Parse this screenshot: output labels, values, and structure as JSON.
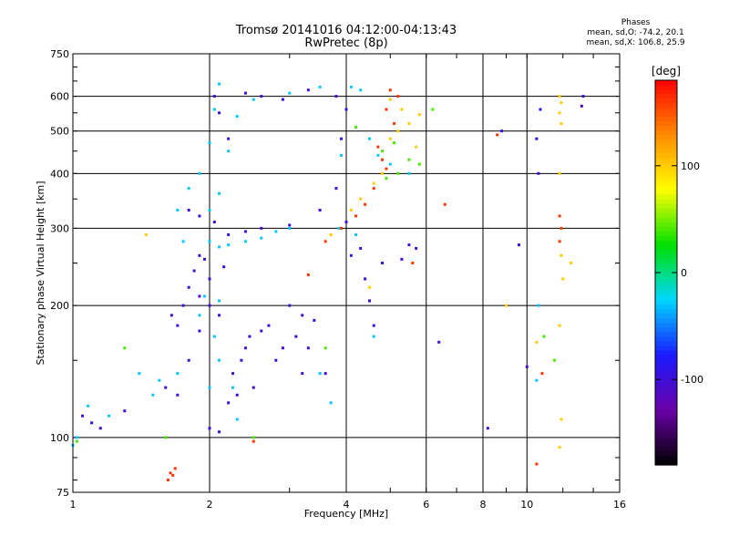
{
  "header": {
    "title_line1": "Tromsø 20141016 04:12:00-04:13:43",
    "title_line2": "RwPretec (8p)"
  },
  "stats": {
    "heading": "Phases",
    "line1": "mean, sd,O: -74.2, 20.1",
    "line2": "mean, sd,X: 106.8, 25.9"
  },
  "chart_data": {
    "type": "scatter",
    "xlabel": "Frequency [MHz]",
    "ylabel": "Stationary phase Virtual Height [km]",
    "x_scale": "log",
    "y_scale": "log",
    "xlim": [
      1,
      16
    ],
    "ylim": [
      75,
      750
    ],
    "x_ticks": [
      1,
      2,
      4,
      6,
      8,
      10,
      16
    ],
    "y_ticks": [
      75,
      100,
      200,
      300,
      400,
      500,
      600,
      750
    ],
    "grid": true,
    "colorbar": {
      "label": "[deg]",
      "range": [
        -180,
        180
      ],
      "ticks": [
        100,
        0,
        -100
      ],
      "colors": [
        "#000000",
        "#6a00a8",
        "#1a1aff",
        "#00d8ff",
        "#00e000",
        "#ffff00",
        "#ff8c00",
        "#ff0000"
      ]
    },
    "series": [
      {
        "phase": -100,
        "points": [
          [
            1.05,
            112
          ],
          [
            1.1,
            108
          ],
          [
            1.15,
            105
          ],
          [
            1.3,
            115
          ],
          [
            1.6,
            130
          ],
          [
            1.7,
            125
          ],
          [
            1.8,
            150
          ],
          [
            1.9,
            175
          ],
          [
            2.0,
            105
          ],
          [
            2.1,
            103
          ],
          [
            2.05,
            600
          ],
          [
            2.1,
            550
          ],
          [
            2.2,
            480
          ],
          [
            2.4,
            610
          ],
          [
            2.6,
            600
          ],
          [
            2.9,
            590
          ],
          [
            3.3,
            620
          ],
          [
            3.8,
            600
          ],
          [
            4.0,
            560
          ],
          [
            3.9,
            480
          ],
          [
            3.8,
            370
          ],
          [
            3.5,
            330
          ],
          [
            3.0,
            305
          ],
          [
            2.6,
            300
          ],
          [
            2.4,
            295
          ],
          [
            2.2,
            290
          ],
          [
            2.05,
            310
          ],
          [
            1.9,
            320
          ],
          [
            1.8,
            330
          ],
          [
            3.2,
            190
          ],
          [
            3.4,
            185
          ],
          [
            3.6,
            140
          ],
          [
            2.8,
            150
          ],
          [
            2.5,
            130
          ],
          [
            2.3,
            125
          ],
          [
            2.2,
            120
          ],
          [
            2.4,
            160
          ],
          [
            2.6,
            175
          ],
          [
            4.0,
            310
          ],
          [
            4.1,
            260
          ],
          [
            4.5,
            205
          ],
          [
            4.6,
            180
          ],
          [
            4.8,
            250
          ],
          [
            5.3,
            255
          ],
          [
            5.5,
            275
          ],
          [
            5.7,
            270
          ],
          [
            4.3,
            270
          ],
          [
            4.4,
            230
          ],
          [
            6.4,
            165
          ],
          [
            8.2,
            105
          ],
          [
            8.8,
            500
          ],
          [
            9.6,
            275
          ],
          [
            10.5,
            480
          ],
          [
            10.6,
            400
          ],
          [
            10.7,
            560
          ],
          [
            13.2,
            570
          ],
          [
            13.3,
            600
          ],
          [
            10.0,
            145
          ],
          [
            2.0,
            230
          ],
          [
            1.9,
            210
          ],
          [
            2.0,
            200
          ],
          [
            2.1,
            190
          ],
          [
            1.85,
            240
          ],
          [
            1.9,
            260
          ],
          [
            1.95,
            255
          ],
          [
            2.15,
            245
          ],
          [
            1.75,
            200
          ],
          [
            1.8,
            220
          ],
          [
            1.7,
            180
          ],
          [
            1.65,
            190
          ],
          [
            2.25,
            140
          ],
          [
            2.35,
            150
          ],
          [
            2.45,
            170
          ],
          [
            2.7,
            180
          ],
          [
            3.0,
            200
          ],
          [
            3.1,
            170
          ],
          [
            2.9,
            160
          ],
          [
            3.3,
            160
          ],
          [
            3.2,
            140
          ]
        ]
      },
      {
        "phase": -30,
        "points": [
          [
            1.0,
            96
          ],
          [
            1.02,
            100
          ],
          [
            1.08,
            118
          ],
          [
            1.2,
            112
          ],
          [
            1.4,
            140
          ],
          [
            1.5,
            125
          ],
          [
            1.55,
            135
          ],
          [
            1.7,
            140
          ],
          [
            1.75,
            280
          ],
          [
            1.7,
            330
          ],
          [
            1.8,
            370
          ],
          [
            1.9,
            400
          ],
          [
            2.0,
            280
          ],
          [
            2.1,
            272
          ],
          [
            2.2,
            275
          ],
          [
            2.4,
            280
          ],
          [
            2.6,
            285
          ],
          [
            2.8,
            295
          ],
          [
            3.0,
            300
          ],
          [
            2.1,
            640
          ],
          [
            2.05,
            560
          ],
          [
            2.0,
            470
          ],
          [
            2.1,
            360
          ],
          [
            2.0,
            330
          ],
          [
            1.95,
            210
          ],
          [
            1.9,
            190
          ],
          [
            2.05,
            170
          ],
          [
            2.1,
            150
          ],
          [
            2.0,
            130
          ],
          [
            2.2,
            450
          ],
          [
            2.3,
            540
          ],
          [
            2.5,
            590
          ],
          [
            3.0,
            610
          ],
          [
            3.5,
            630
          ],
          [
            4.1,
            630
          ],
          [
            4.3,
            620
          ],
          [
            4.5,
            480
          ],
          [
            4.7,
            440
          ],
          [
            5.0,
            420
          ],
          [
            5.5,
            400
          ],
          [
            3.9,
            440
          ],
          [
            3.85,
            300
          ],
          [
            3.7,
            120
          ],
          [
            3.5,
            140
          ],
          [
            4.2,
            290
          ],
          [
            4.6,
            170
          ],
          [
            10.6,
            200
          ],
          [
            10.5,
            135
          ],
          [
            2.3,
            110
          ],
          [
            2.25,
            130
          ],
          [
            2.1,
            205
          ]
        ]
      },
      {
        "phase": 40,
        "points": [
          [
            1.02,
            98
          ],
          [
            1.3,
            160
          ],
          [
            2.5,
            100
          ],
          [
            4.8,
            450
          ],
          [
            5.1,
            470
          ],
          [
            5.5,
            430
          ],
          [
            5.8,
            420
          ],
          [
            5.2,
            400
          ],
          [
            4.9,
            390
          ],
          [
            6.2,
            560
          ],
          [
            10.9,
            170
          ],
          [
            11.5,
            150
          ],
          [
            1.6,
            100
          ],
          [
            3.6,
            160
          ],
          [
            4.2,
            510
          ]
        ]
      },
      {
        "phase": 100,
        "points": [
          [
            1.45,
            290
          ],
          [
            4.1,
            330
          ],
          [
            4.3,
            350
          ],
          [
            4.6,
            380
          ],
          [
            4.8,
            400
          ],
          [
            5.0,
            480
          ],
          [
            5.2,
            500
          ],
          [
            5.5,
            520
          ],
          [
            5.7,
            460
          ],
          [
            5.3,
            560
          ],
          [
            5.0,
            590
          ],
          [
            9.0,
            200
          ],
          [
            11.8,
            600
          ],
          [
            11.9,
            580
          ],
          [
            11.8,
            550
          ],
          [
            11.9,
            520
          ],
          [
            11.8,
            400
          ],
          [
            11.9,
            260
          ],
          [
            12.0,
            230
          ],
          [
            11.8,
            180
          ],
          [
            11.9,
            110
          ],
          [
            11.8,
            95
          ],
          [
            12.5,
            250
          ],
          [
            10.5,
            165
          ],
          [
            4.5,
            220
          ],
          [
            5.8,
            545
          ],
          [
            3.7,
            290
          ]
        ]
      },
      {
        "phase": 160,
        "points": [
          [
            1.62,
            80
          ],
          [
            1.64,
            83
          ],
          [
            1.66,
            82
          ],
          [
            1.68,
            85
          ],
          [
            2.5,
            98
          ],
          [
            3.6,
            280
          ],
          [
            3.9,
            300
          ],
          [
            4.2,
            320
          ],
          [
            4.4,
            340
          ],
          [
            4.6,
            370
          ],
          [
            4.8,
            430
          ],
          [
            4.9,
            560
          ],
          [
            5.0,
            620
          ],
          [
            5.2,
            600
          ],
          [
            5.1,
            520
          ],
          [
            4.7,
            460
          ],
          [
            4.9,
            410
          ],
          [
            3.3,
            235
          ],
          [
            11.8,
            320
          ],
          [
            11.9,
            300
          ],
          [
            11.8,
            280
          ],
          [
            8.6,
            490
          ],
          [
            10.5,
            87
          ],
          [
            10.8,
            140
          ],
          [
            6.6,
            340
          ],
          [
            5.6,
            250
          ]
        ]
      }
    ]
  }
}
